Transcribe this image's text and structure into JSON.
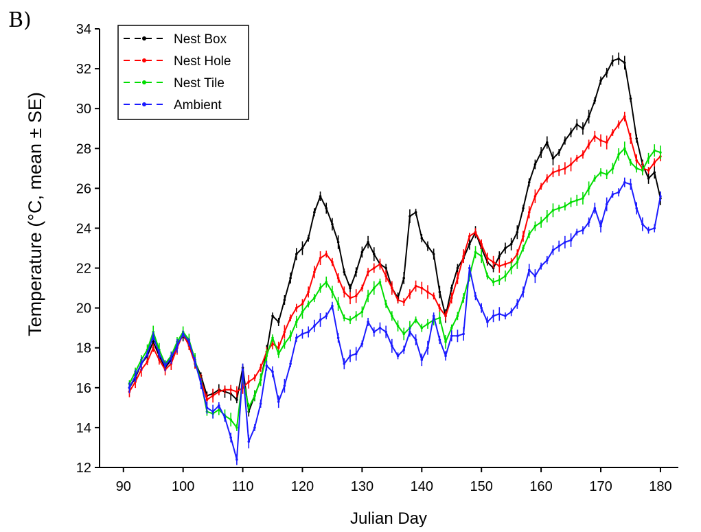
{
  "panel_label": "B)",
  "chart_data": {
    "type": "line",
    "xlabel": "Julian Day",
    "ylabel": "Temperature (°C, mean ± SE)",
    "xlim": [
      86,
      183
    ],
    "ylim": [
      12,
      34
    ],
    "xticks": [
      90,
      100,
      110,
      120,
      130,
      140,
      150,
      160,
      170,
      180
    ],
    "yticks": [
      12,
      14,
      16,
      18,
      20,
      22,
      24,
      26,
      28,
      30,
      32,
      34
    ],
    "grid": false,
    "legend_position": "top-left",
    "x": [
      91,
      92,
      93,
      94,
      95,
      96,
      97,
      98,
      99,
      100,
      101,
      102,
      103,
      104,
      105,
      106,
      107,
      108,
      109,
      110,
      111,
      112,
      113,
      114,
      115,
      116,
      117,
      118,
      119,
      120,
      121,
      122,
      123,
      124,
      125,
      126,
      127,
      128,
      129,
      130,
      131,
      132,
      133,
      134,
      135,
      136,
      137,
      138,
      139,
      140,
      141,
      142,
      143,
      144,
      145,
      146,
      147,
      148,
      149,
      150,
      151,
      152,
      153,
      154,
      155,
      156,
      157,
      158,
      159,
      160,
      161,
      162,
      163,
      164,
      165,
      166,
      167,
      168,
      169,
      170,
      171,
      172,
      173,
      174,
      175,
      176,
      177,
      178,
      179,
      180
    ],
    "series": [
      {
        "name": "Nest Box",
        "color": "#000000",
        "values": [
          16.0,
          16.5,
          17.2,
          17.6,
          18.3,
          17.6,
          17.0,
          17.4,
          18.2,
          18.6,
          18.2,
          17.3,
          16.6,
          15.6,
          15.7,
          15.9,
          15.8,
          15.7,
          15.4,
          17.0,
          14.8,
          15.6,
          16.4,
          17.8,
          19.6,
          19.3,
          20.4,
          21.5,
          22.7,
          23.0,
          23.5,
          24.8,
          25.6,
          25.0,
          24.2,
          23.3,
          21.8,
          21.0,
          21.8,
          22.8,
          23.3,
          22.7,
          22.2,
          22.0,
          21.0,
          20.5,
          21.5,
          24.6,
          24.8,
          23.5,
          23.1,
          22.7,
          20.8,
          19.6,
          21.0,
          22.0,
          22.5,
          23.2,
          23.8,
          23.0,
          22.3,
          22.0,
          22.6,
          23.0,
          23.2,
          23.8,
          25.0,
          26.3,
          27.2,
          27.8,
          28.3,
          27.5,
          27.8,
          28.4,
          28.8,
          29.2,
          29.0,
          29.6,
          30.4,
          31.4,
          31.8,
          32.4,
          32.5,
          32.3,
          30.5,
          28.5,
          27.2,
          26.5,
          26.8,
          25.5
        ]
      },
      {
        "name": "Nest Hole",
        "color": "#ff0000",
        "values": [
          15.8,
          16.3,
          16.9,
          17.3,
          18.0,
          17.4,
          16.9,
          17.2,
          18.0,
          18.7,
          18.1,
          17.2,
          16.4,
          15.4,
          15.6,
          15.8,
          15.9,
          15.9,
          15.8,
          16.0,
          16.3,
          16.5,
          17.0,
          17.8,
          18.2,
          18.0,
          18.8,
          19.5,
          20.0,
          20.2,
          20.8,
          21.8,
          22.5,
          22.7,
          22.3,
          21.5,
          20.8,
          20.5,
          20.6,
          21.0,
          21.8,
          22.0,
          22.2,
          21.6,
          21.0,
          20.4,
          20.3,
          20.7,
          21.1,
          21.0,
          20.8,
          20.6,
          20.0,
          19.6,
          20.5,
          21.5,
          22.6,
          23.6,
          23.8,
          23.2,
          22.5,
          22.3,
          22.1,
          22.2,
          22.3,
          22.7,
          23.6,
          24.8,
          25.6,
          26.1,
          26.5,
          26.8,
          26.9,
          27.0,
          27.2,
          27.5,
          27.7,
          28.2,
          28.6,
          28.4,
          28.3,
          28.8,
          29.2,
          29.6,
          28.5,
          27.4,
          27.0,
          26.9,
          27.3,
          27.6
        ]
      },
      {
        "name": "Nest Tile",
        "color": "#00dd00",
        "values": [
          16.2,
          16.8,
          17.4,
          17.9,
          18.8,
          17.9,
          17.2,
          17.6,
          18.3,
          18.8,
          18.4,
          17.4,
          16.3,
          14.8,
          14.7,
          14.9,
          14.6,
          14.4,
          14.0,
          16.5,
          15.0,
          15.6,
          16.4,
          17.6,
          18.5,
          17.7,
          18.2,
          18.6,
          19.3,
          19.8,
          20.2,
          20.5,
          21.0,
          21.3,
          20.8,
          20.2,
          19.5,
          19.4,
          19.6,
          19.8,
          20.6,
          21.0,
          21.3,
          20.2,
          19.6,
          19.1,
          18.7,
          19.0,
          19.4,
          19.0,
          19.2,
          19.4,
          19.5,
          18.3,
          19.0,
          19.6,
          20.5,
          21.6,
          22.8,
          22.6,
          21.6,
          21.3,
          21.4,
          21.6,
          22.0,
          22.3,
          23.0,
          23.7,
          24.1,
          24.3,
          24.6,
          24.9,
          25.0,
          25.1,
          25.3,
          25.4,
          25.5,
          26.0,
          26.5,
          26.8,
          26.7,
          27.0,
          27.7,
          28.0,
          27.3,
          27.0,
          26.9,
          27.5,
          27.9,
          27.8
        ]
      },
      {
        "name": "Ambient",
        "color": "#1a1aff",
        "values": [
          16.0,
          16.6,
          17.2,
          17.7,
          18.6,
          17.7,
          17.1,
          17.5,
          18.1,
          18.7,
          18.3,
          17.3,
          16.2,
          15.0,
          14.8,
          15.1,
          14.5,
          13.5,
          12.4,
          16.9,
          13.3,
          14.0,
          15.2,
          17.1,
          16.8,
          15.3,
          16.1,
          17.2,
          18.5,
          18.7,
          18.8,
          19.1,
          19.4,
          19.6,
          20.1,
          18.5,
          17.2,
          17.6,
          17.7,
          18.2,
          19.3,
          18.8,
          19.0,
          18.8,
          18.1,
          17.6,
          17.9,
          18.8,
          18.4,
          17.4,
          18.0,
          19.6,
          18.4,
          17.6,
          18.6,
          18.6,
          18.7,
          22.0,
          20.6,
          20.0,
          19.3,
          19.6,
          19.7,
          19.6,
          19.8,
          20.2,
          20.8,
          21.9,
          21.6,
          22.1,
          22.4,
          22.9,
          23.1,
          23.3,
          23.4,
          23.8,
          23.9,
          24.3,
          25.0,
          24.1,
          25.2,
          25.7,
          25.8,
          26.3,
          26.2,
          25.0,
          24.2,
          23.9,
          24.0,
          25.6
        ]
      }
    ]
  }
}
